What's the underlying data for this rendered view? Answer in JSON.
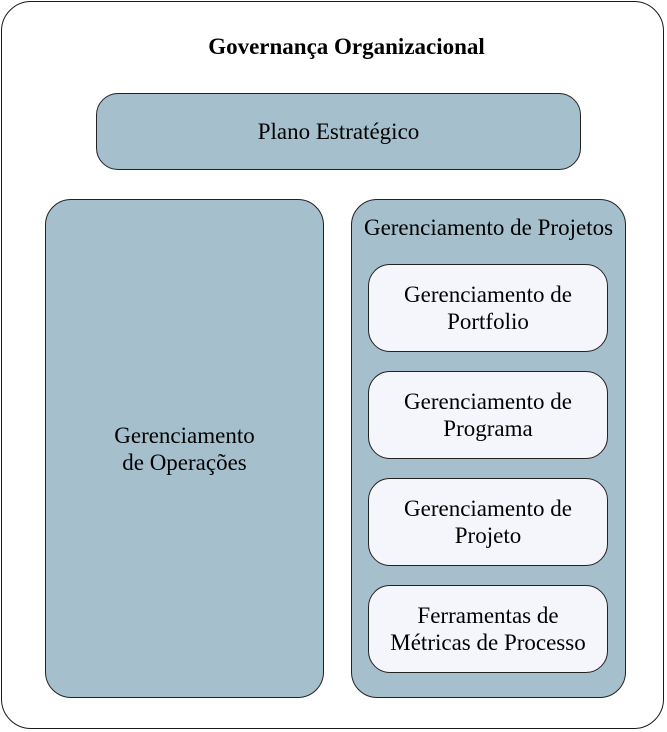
{
  "diagram": {
    "title": "Governança Organizacional",
    "strategic_plan": "Plano Estratégico",
    "operations": {
      "line1": "Gerenciamento",
      "line2": "de Operações"
    },
    "projects_management": {
      "label": "Gerenciamento de Projetos",
      "items": [
        {
          "line1": "Gerenciamento de",
          "line2": "Portfolio"
        },
        {
          "line1": "Gerenciamento de",
          "line2": "Programa"
        },
        {
          "line1": "Gerenciamento de",
          "line2": "Projeto"
        },
        {
          "line1": "Ferramentas de",
          "line2": "Métricas de Processo"
        }
      ]
    },
    "colors": {
      "box_fill": "#a5bfcd",
      "inner_box_fill": "#f5f6fc",
      "border": "#222222"
    }
  }
}
